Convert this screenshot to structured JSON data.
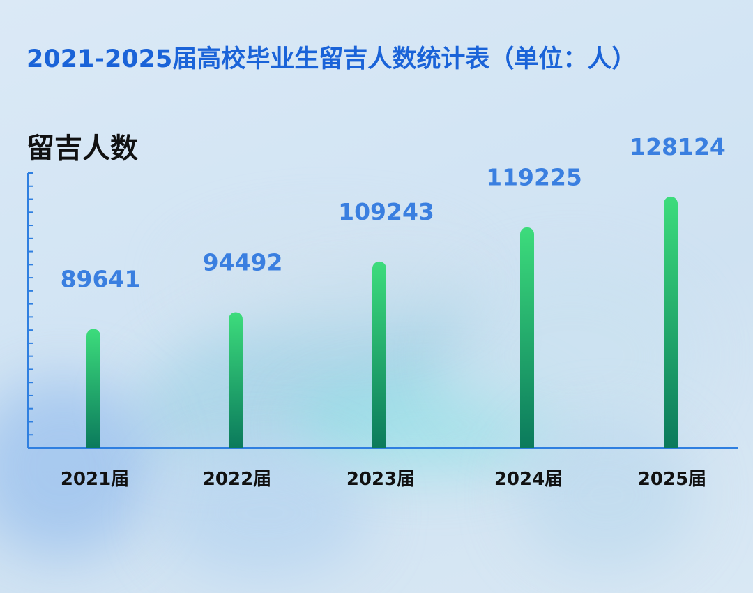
{
  "title": "2021-2025届高校毕业生留吉人数统计表（单位：人）",
  "chart_data": {
    "type": "bar",
    "ylabel": "留吉人数",
    "categories": [
      "2021届",
      "2022届",
      "2023届",
      "2024届",
      "2025届"
    ],
    "values": [
      89641,
      94492,
      109243,
      119225,
      128124
    ],
    "ylim": [
      55000,
      135000
    ],
    "grid": false,
    "bar_gradient": [
      "#3ddc7c",
      "#0b7a5c"
    ],
    "value_label_color": "#3a7fe0",
    "axis_color": "#2f7fe0",
    "title_color": "#1a63d8"
  }
}
